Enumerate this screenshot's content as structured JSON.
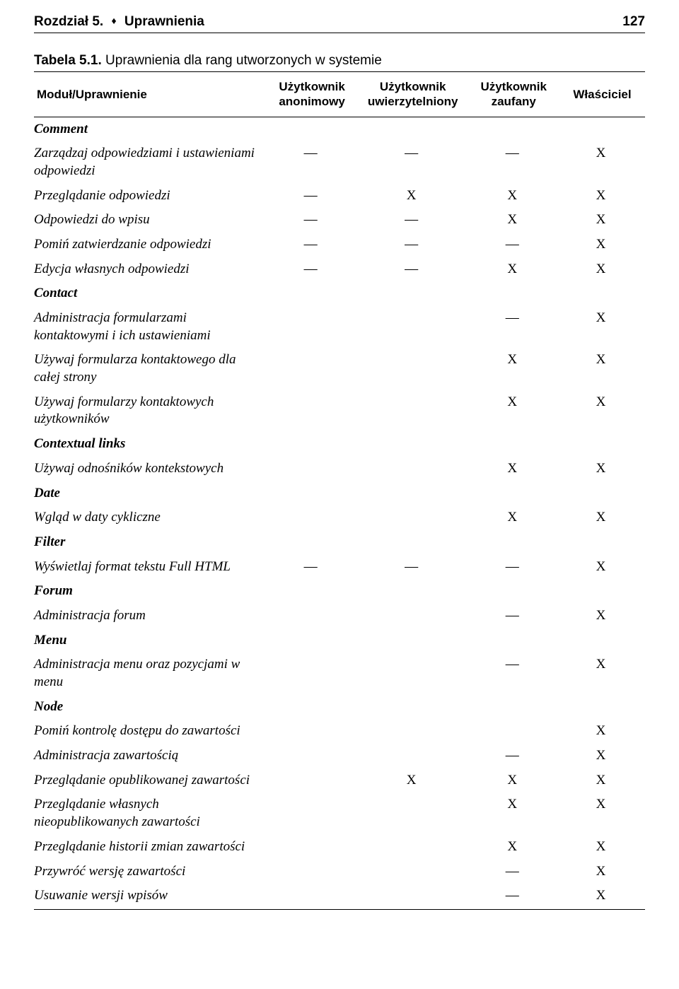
{
  "header": {
    "chapter": "Rozdział 5.",
    "separator": "♦",
    "title": "Uprawnienia",
    "page_number": "127"
  },
  "table": {
    "caption_label": "Tabela 5.1.",
    "caption_text": "Uprawnienia dla rang utworzonych w systemie",
    "columns": {
      "c0": "Moduł/Uprawnienie",
      "c1": "Użytkownik anonimowy",
      "c2": "Użytkownik uwierzytelniony",
      "c3": "Użytkownik zaufany",
      "c4": "Właściciel"
    },
    "rows": [
      {
        "type": "section",
        "label": "Comment"
      },
      {
        "type": "data",
        "label": "Zarządzaj odpowiedziami i ustawieniami odpowiedzi",
        "cells": [
          "—",
          "—",
          "—",
          "X"
        ]
      },
      {
        "type": "data",
        "label": "Przeglądanie odpowiedzi",
        "cells": [
          "—",
          "X",
          "X",
          "X"
        ]
      },
      {
        "type": "data",
        "label": "Odpowiedzi do wpisu",
        "cells": [
          "—",
          "—",
          "X",
          "X"
        ]
      },
      {
        "type": "data",
        "label": "Pomiń zatwierdzanie odpowiedzi",
        "cells": [
          "—",
          "—",
          "—",
          "X"
        ]
      },
      {
        "type": "data",
        "label": "Edycja własnych odpowiedzi",
        "cells": [
          "—",
          "—",
          "X",
          "X"
        ]
      },
      {
        "type": "section",
        "label": "Contact"
      },
      {
        "type": "data",
        "label": "Administracja formularzami kontaktowymi i ich ustawieniami",
        "cells": [
          "",
          "",
          "—",
          "X"
        ]
      },
      {
        "type": "data",
        "label": "Używaj formularza kontaktowego dla całej strony",
        "cells": [
          "",
          "",
          "X",
          "X"
        ]
      },
      {
        "type": "data",
        "label": "Używaj formularzy kontaktowych użytkowników",
        "cells": [
          "",
          "",
          "X",
          "X"
        ]
      },
      {
        "type": "section",
        "label": "Contextual links"
      },
      {
        "type": "data",
        "label": "Używaj odnośników kontekstowych",
        "cells": [
          "",
          "",
          "X",
          "X"
        ]
      },
      {
        "type": "section",
        "label": "Date"
      },
      {
        "type": "data",
        "label": "Wgląd w daty cykliczne",
        "cells": [
          "",
          "",
          "X",
          "X"
        ]
      },
      {
        "type": "section",
        "label": "Filter"
      },
      {
        "type": "data",
        "label": "Wyświetlaj format tekstu Full HTML",
        "cells": [
          "—",
          "—",
          "—",
          "X"
        ]
      },
      {
        "type": "section",
        "label": "Forum"
      },
      {
        "type": "data",
        "label": "Administracja forum",
        "cells": [
          "",
          "",
          "—",
          "X"
        ]
      },
      {
        "type": "section",
        "label": "Menu"
      },
      {
        "type": "data",
        "label": "Administracja menu oraz pozycjami w menu",
        "cells": [
          "",
          "",
          "—",
          "X"
        ]
      },
      {
        "type": "section",
        "label": "Node"
      },
      {
        "type": "data",
        "label": "Pomiń kontrolę dostępu do zawartości",
        "cells": [
          "",
          "",
          "",
          "X"
        ]
      },
      {
        "type": "data",
        "label": "Administracja zawartością",
        "cells": [
          "",
          "",
          "—",
          "X"
        ]
      },
      {
        "type": "data",
        "label": "Przeglądanie opublikowanej zawartości",
        "cells": [
          "",
          "X",
          "X",
          "X"
        ]
      },
      {
        "type": "data",
        "label": "Przeglądanie własnych nieopublikowanych zawartości",
        "cells": [
          "",
          "",
          "X",
          "X"
        ]
      },
      {
        "type": "data",
        "label": "Przeglądanie historii zmian zawartości",
        "cells": [
          "",
          "",
          "X",
          "X"
        ]
      },
      {
        "type": "data",
        "label": "Przywróć wersję zawartości",
        "cells": [
          "",
          "",
          "—",
          "X"
        ]
      },
      {
        "type": "data",
        "label": "Usuwanie wersji wpisów",
        "cells": [
          "",
          "",
          "—",
          "X"
        ],
        "last": true
      }
    ]
  }
}
